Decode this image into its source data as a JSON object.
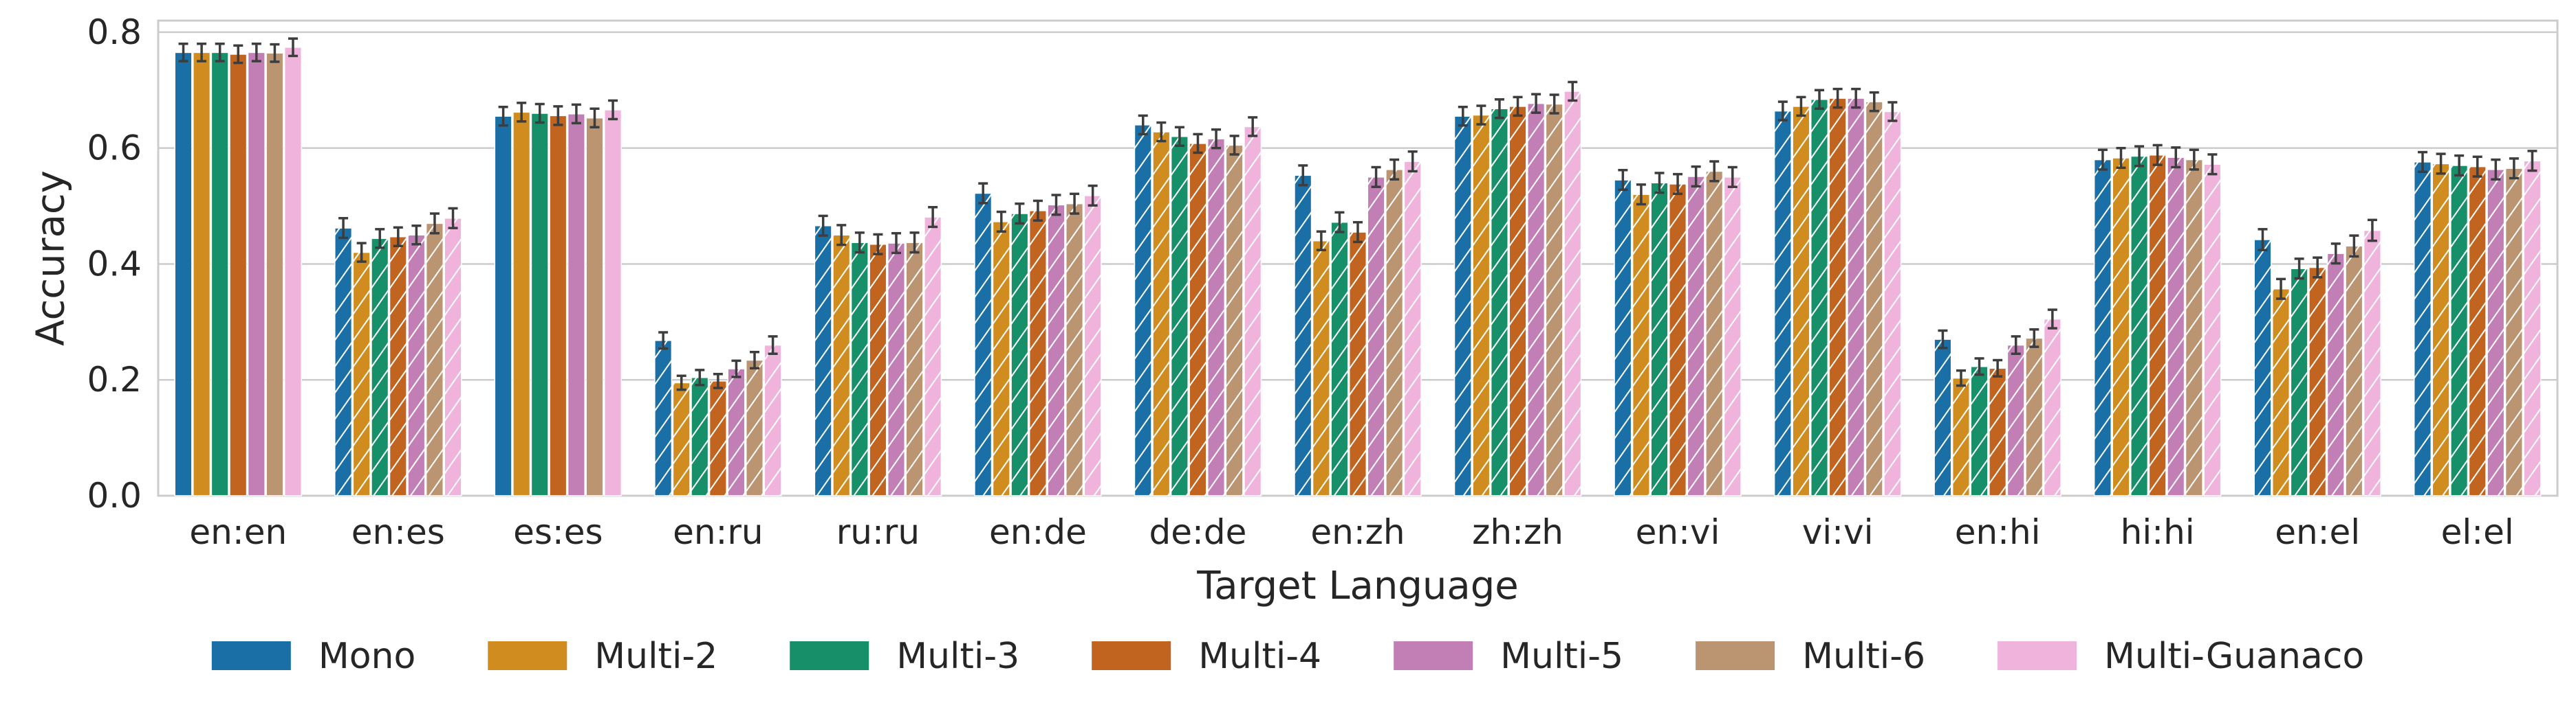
{
  "chart_data": {
    "type": "bar",
    "xlabel": "Target Language",
    "ylabel": "Accuracy",
    "ylim": [
      0,
      0.82
    ],
    "yticks": [
      "0.0",
      "0.2",
      "0.4",
      "0.6",
      "0.8"
    ],
    "ytick_values": [
      0,
      0.2,
      0.4,
      0.6,
      0.8
    ],
    "grid": true,
    "legend_position": "bottom",
    "categories": [
      "en:en",
      "en:es",
      "es:es",
      "en:ru",
      "ru:ru",
      "en:de",
      "de:de",
      "en:zh",
      "zh:zh",
      "en:vi",
      "vi:vi",
      "en:hi",
      "hi:hi",
      "en:el",
      "el:el"
    ],
    "hatched_categories": [
      "en:es",
      "en:ru",
      "ru:ru",
      "en:de",
      "de:de",
      "en:zh",
      "zh:zh",
      "en:vi",
      "vi:vi",
      "en:hi",
      "hi:hi",
      "en:el",
      "el:el"
    ],
    "hatched_series_in_solid_groups": [],
    "series": [
      {
        "name": "Mono",
        "color": "#1a6fa6",
        "values": [
          0.765,
          0.462,
          0.655,
          0.268,
          0.466,
          0.522,
          0.64,
          0.553,
          0.655,
          0.545,
          0.664,
          0.27,
          0.58,
          0.442,
          0.576
        ],
        "errors": [
          0.015,
          0.017,
          0.016,
          0.014,
          0.017,
          0.017,
          0.016,
          0.017,
          0.016,
          0.017,
          0.016,
          0.015,
          0.017,
          0.018,
          0.017
        ]
      },
      {
        "name": "Multi-2",
        "color": "#d08c1e",
        "values": [
          0.765,
          0.42,
          0.662,
          0.195,
          0.45,
          0.473,
          0.628,
          0.44,
          0.657,
          0.52,
          0.672,
          0.203,
          0.583,
          0.357,
          0.573
        ],
        "errors": [
          0.015,
          0.016,
          0.016,
          0.012,
          0.017,
          0.017,
          0.016,
          0.016,
          0.016,
          0.017,
          0.016,
          0.013,
          0.017,
          0.017,
          0.017
        ]
      },
      {
        "name": "Multi-3",
        "color": "#17906a",
        "values": [
          0.765,
          0.444,
          0.66,
          0.204,
          0.437,
          0.487,
          0.62,
          0.472,
          0.668,
          0.54,
          0.684,
          0.223,
          0.586,
          0.392,
          0.57
        ],
        "errors": [
          0.015,
          0.016,
          0.016,
          0.013,
          0.017,
          0.017,
          0.016,
          0.017,
          0.016,
          0.017,
          0.016,
          0.014,
          0.017,
          0.017,
          0.017
        ]
      },
      {
        "name": "Multi-4",
        "color": "#c1641f",
        "values": [
          0.762,
          0.447,
          0.656,
          0.198,
          0.434,
          0.492,
          0.608,
          0.455,
          0.672,
          0.538,
          0.686,
          0.22,
          0.588,
          0.394,
          0.568
        ],
        "errors": [
          0.015,
          0.016,
          0.016,
          0.012,
          0.017,
          0.017,
          0.016,
          0.017,
          0.016,
          0.017,
          0.016,
          0.014,
          0.017,
          0.017,
          0.017
        ]
      },
      {
        "name": "Multi-5",
        "color": "#c17fb6",
        "values": [
          0.765,
          0.45,
          0.659,
          0.219,
          0.436,
          0.502,
          0.616,
          0.55,
          0.677,
          0.551,
          0.686,
          0.26,
          0.584,
          0.418,
          0.563
        ],
        "errors": [
          0.015,
          0.016,
          0.016,
          0.014,
          0.017,
          0.017,
          0.016,
          0.017,
          0.016,
          0.017,
          0.016,
          0.015,
          0.017,
          0.017,
          0.017
        ]
      },
      {
        "name": "Multi-6",
        "color": "#bb9471",
        "values": [
          0.764,
          0.47,
          0.652,
          0.234,
          0.437,
          0.504,
          0.605,
          0.563,
          0.676,
          0.56,
          0.68,
          0.272,
          0.58,
          0.431,
          0.565
        ],
        "errors": [
          0.015,
          0.017,
          0.016,
          0.014,
          0.017,
          0.017,
          0.016,
          0.017,
          0.016,
          0.017,
          0.016,
          0.015,
          0.017,
          0.018,
          0.017
        ]
      },
      {
        "name": "Multi-Guanaco",
        "color": "#f0b4dc",
        "values": [
          0.774,
          0.479,
          0.666,
          0.26,
          0.481,
          0.518,
          0.637,
          0.577,
          0.698,
          0.55,
          0.663,
          0.305,
          0.572,
          0.458,
          0.578
        ],
        "errors": [
          0.015,
          0.017,
          0.016,
          0.015,
          0.017,
          0.017,
          0.016,
          0.017,
          0.016,
          0.017,
          0.016,
          0.016,
          0.017,
          0.018,
          0.017
        ]
      }
    ]
  }
}
